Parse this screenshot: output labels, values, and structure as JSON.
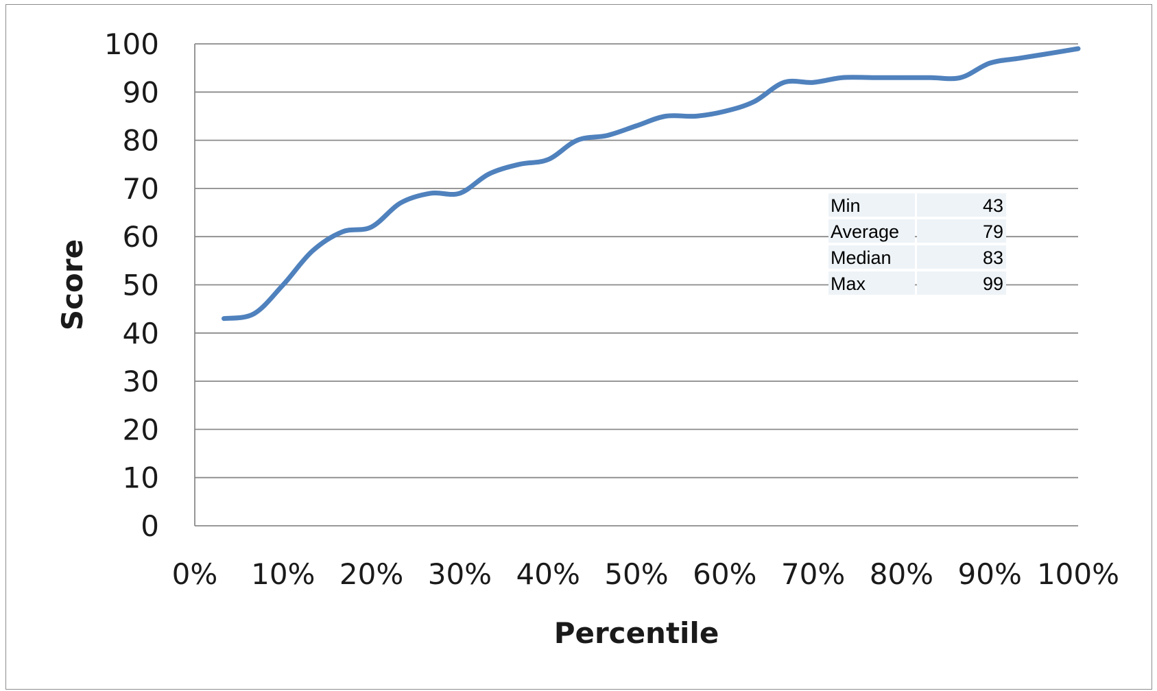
{
  "chart_data": {
    "type": "line",
    "title": "",
    "xlabel": "Percentile",
    "ylabel": "Score",
    "xlim": [
      0,
      100
    ],
    "ylim": [
      0,
      100
    ],
    "grid": true,
    "x_ticks": [
      "0%",
      "10%",
      "20%",
      "30%",
      "40%",
      "50%",
      "60%",
      "70%",
      "80%",
      "90%",
      "100%"
    ],
    "y_ticks": [
      "0",
      "10",
      "20",
      "30",
      "40",
      "50",
      "60",
      "70",
      "80",
      "90",
      "100"
    ],
    "line_color": "#4f81bd",
    "series": [
      {
        "x": [
          3.3,
          6.7,
          10,
          13.3,
          16.7,
          20,
          23.3,
          26.7,
          30,
          33.3,
          36.7,
          40,
          43.3,
          46.7,
          50,
          53.3,
          56.7,
          60,
          63.3,
          66.7,
          70,
          73.3,
          76.7,
          80,
          83.3,
          86.7,
          90,
          93.3,
          96.7,
          100
        ],
        "y": [
          43,
          44,
          50,
          57,
          61,
          62,
          67,
          69,
          69,
          73,
          75,
          76,
          80,
          81,
          83,
          85,
          85,
          86,
          88,
          92,
          92,
          93,
          93,
          93,
          93,
          93,
          96,
          97,
          98,
          99
        ]
      }
    ],
    "stats_table": [
      {
        "label": "Min",
        "value": "43"
      },
      {
        "label": "Average",
        "value": "79"
      },
      {
        "label": "Median",
        "value": "83"
      },
      {
        "label": "Max",
        "value": "99"
      }
    ]
  }
}
